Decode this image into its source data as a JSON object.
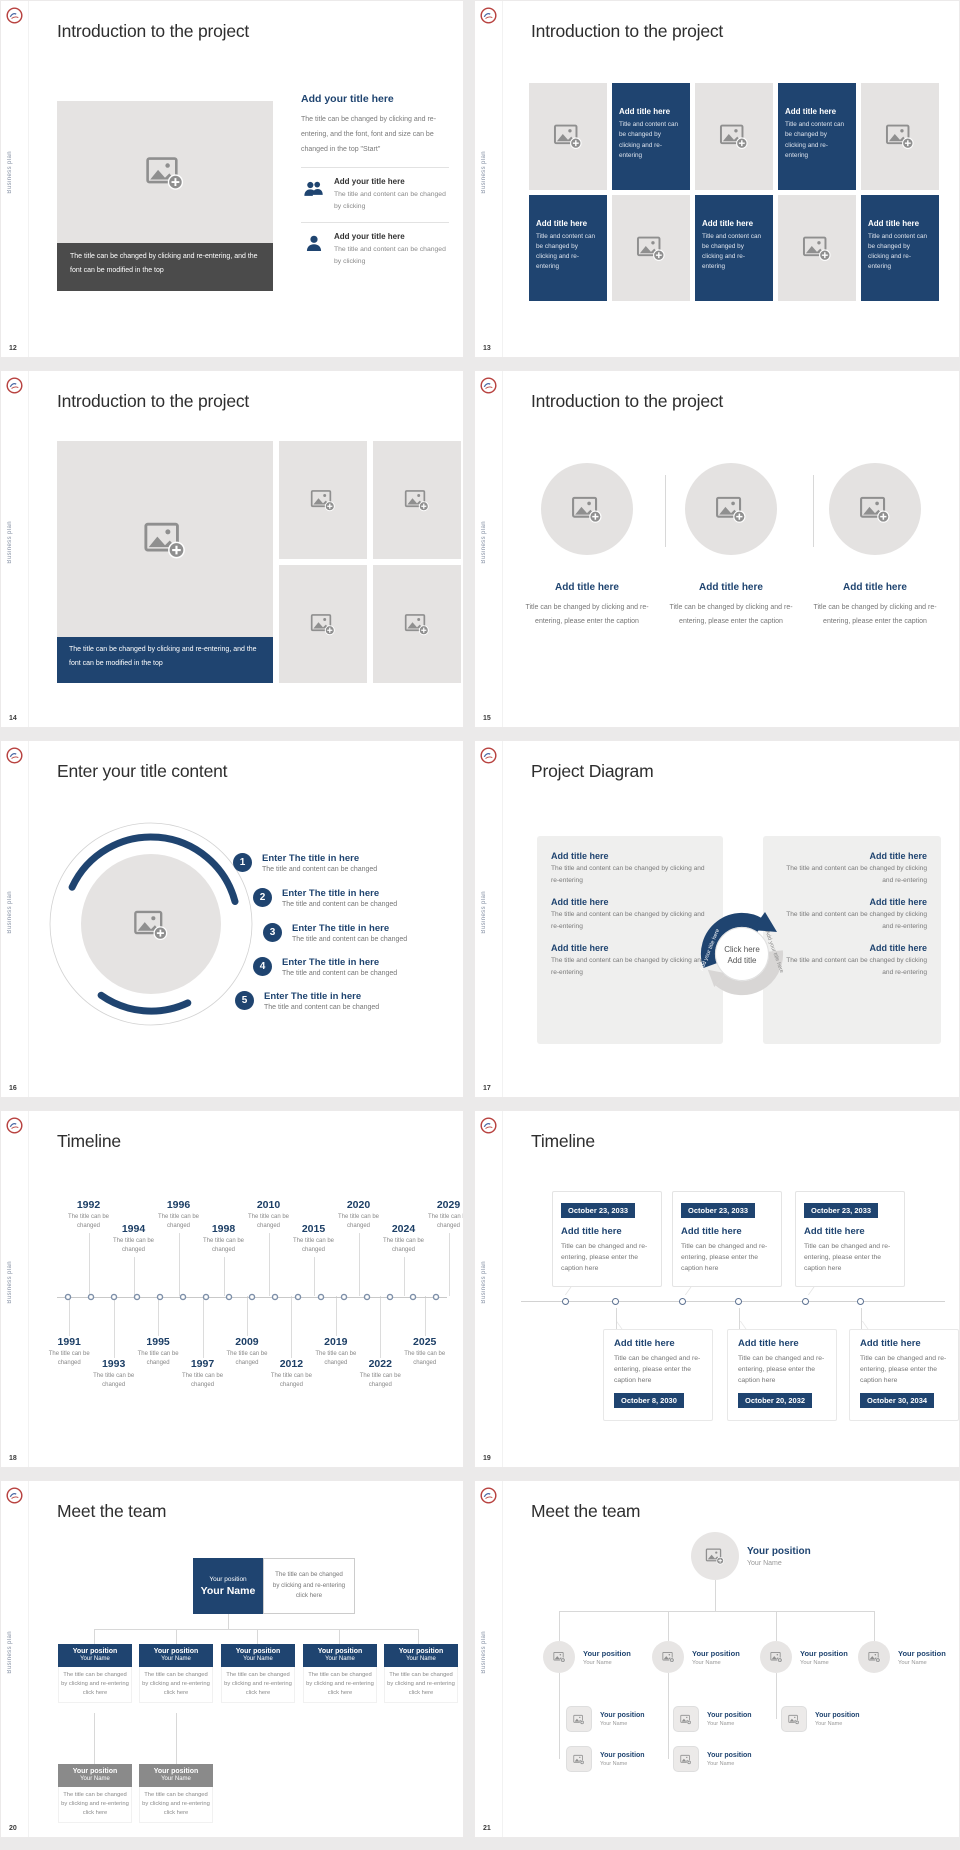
{
  "brand": {
    "vertical_label": "Business plan",
    "navy": "#1f4470",
    "dark_gray": "#4b4b4b",
    "placeholder_gray": "#e5e3e2"
  },
  "slides": {
    "s12": {
      "number": "12",
      "title": "Introduction to the project",
      "photo_caption": "The title can be changed by clicking and re-entering, and the font can be modified in the top",
      "heading": "Add your title here",
      "paragraph": "The title can be changed by clicking and re-entering, and the font, font and size can be changed in the top \"Start\"",
      "item_title": "Add your title here",
      "item_text": "The title and content can be changed by clicking"
    },
    "s13": {
      "number": "13",
      "title": "Introduction to the project",
      "cell_title": "Add title here",
      "cell_text": "Title and content can be changed by clicking and re-entering"
    },
    "s14": {
      "number": "14",
      "title": "Introduction to the project",
      "photo_caption": "The title can be changed by clicking and re-entering, and the font can be modified in the top"
    },
    "s15": {
      "number": "15",
      "title": "Introduction to the project",
      "item_title": "Add title here",
      "item_text": "Title can be changed by clicking and re-entering, please enter the caption"
    },
    "s16": {
      "number": "16",
      "title": "Enter your title content",
      "steps": [
        "1",
        "2",
        "3",
        "4",
        "5"
      ],
      "step_title": "Enter The title in here",
      "step_text": "The title and content can be changed"
    },
    "s17": {
      "number": "17",
      "title": "Project Diagram",
      "block_title": "Add title here",
      "block_text": "The title and content can be changed by clicking and re-entering",
      "center_line1": "Click here",
      "center_line2": "Add title",
      "curved_label": "Add your title here"
    },
    "s18": {
      "number": "18",
      "title": "Timeline",
      "top_years": [
        "1992",
        "1994",
        "1996",
        "1998",
        "2010",
        "2015",
        "2020",
        "2024",
        "2029"
      ],
      "bottom_years": [
        "1991",
        "1993",
        "1995",
        "1997",
        "2009",
        "2012",
        "2019",
        "2022",
        "2025"
      ],
      "year_caption": "The title can be changed"
    },
    "s19": {
      "number": "19",
      "title": "Timeline",
      "top_date": "October 23, 2033",
      "bottom_dates": [
        "October 8, 2030",
        "October 20, 2032",
        "October 30, 2034"
      ],
      "block_title": "Add title here",
      "block_text": "Title can be changed and re-entering, please enter the caption here"
    },
    "s20": {
      "number": "20",
      "title": "Meet the team",
      "position": "Your position",
      "name": "Your Name",
      "note": "The title can be changed by clicking and re-entering click here"
    },
    "s21": {
      "number": "21",
      "title": "Meet the team",
      "position": "Your position",
      "name": "Your Name"
    }
  }
}
